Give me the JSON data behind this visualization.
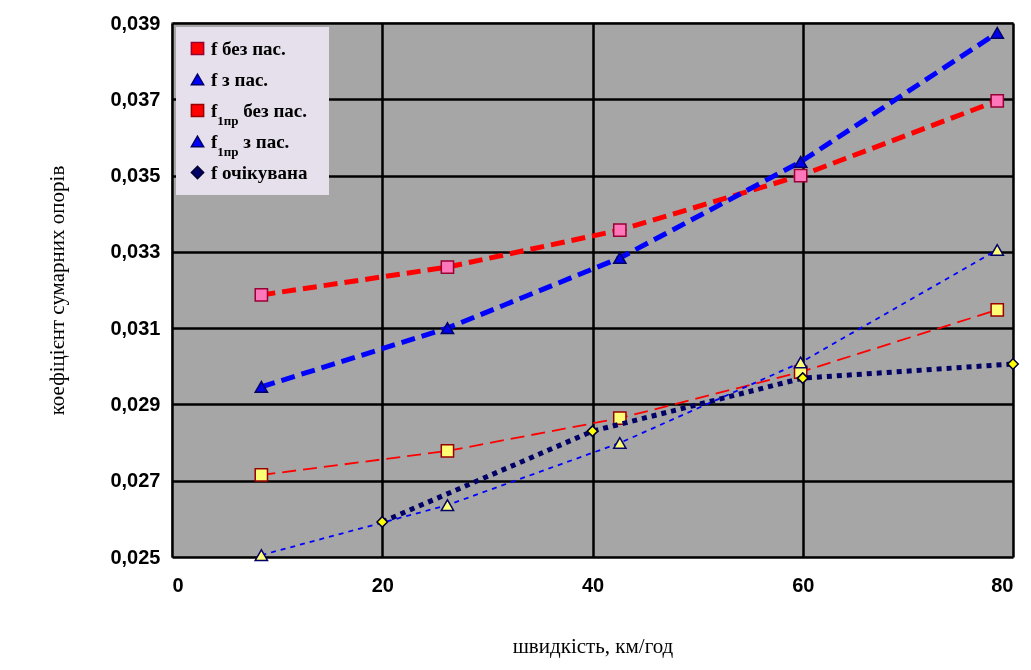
{
  "chart_data": {
    "type": "line",
    "xlabel": "швидкість, км/год",
    "ylabel": "коефіцієнт сумарних опорів",
    "xlim": [
      0,
      80
    ],
    "xticks": [
      0,
      20,
      40,
      60,
      80
    ],
    "ylim": [
      0.025,
      0.039
    ],
    "yticks": [
      {
        "value": 0.025,
        "label": "0,025"
      },
      {
        "value": 0.027,
        "label": "0,027"
      },
      {
        "value": 0.029,
        "label": "0,029"
      },
      {
        "value": 0.031,
        "label": "0,031"
      },
      {
        "value": 0.033,
        "label": "0,033"
      },
      {
        "value": 0.035,
        "label": "0,035"
      },
      {
        "value": 0.037,
        "label": "0,037"
      },
      {
        "value": 0.039,
        "label": "0,039"
      }
    ],
    "grid": true,
    "legend": "top left",
    "series": [
      {
        "name": "f без пас.",
        "color": "#ff0000",
        "marker": "square",
        "line_style": "dashed",
        "x": [
          8.5,
          26.2,
          42.6,
          59.8,
          78.5
        ],
        "values": [
          0.03187,
          0.0326,
          0.03357,
          0.035,
          0.03696
        ]
      },
      {
        "name": "f з пас.",
        "color": "#0000ff",
        "marker": "triangle",
        "line_style": "dashed",
        "x": [
          8.5,
          26.2,
          42.6,
          59.8,
          78.5
        ],
        "values": [
          0.02946,
          0.031,
          0.03284,
          0.03536,
          0.03874
        ]
      },
      {
        "name": "f$_{1пр}$ без пас.",
        "color": "#ff0000",
        "marker": "square",
        "line_style": "dashed",
        "x": [
          8.5,
          26.2,
          42.6,
          59.8,
          78.5
        ],
        "values": [
          0.02715,
          0.02778,
          0.02864,
          0.02985,
          0.03148
        ]
      },
      {
        "name": "f$_{1пр}$ з пас.",
        "color": "#0000ff",
        "marker": "triangle",
        "line_style": "dotted",
        "x": [
          8.5,
          26.2,
          42.6,
          59.8,
          78.5
        ],
        "values": [
          0.02505,
          0.02636,
          0.02799,
          0.0301,
          0.03305
        ]
      },
      {
        "name": "f очікувана",
        "color": "#000066",
        "marker": "diamond",
        "line_style": "dotted",
        "x": [
          20,
          40,
          60,
          80
        ],
        "values": [
          0.02592,
          0.0283,
          0.02969,
          0.03006
        ]
      }
    ]
  }
}
